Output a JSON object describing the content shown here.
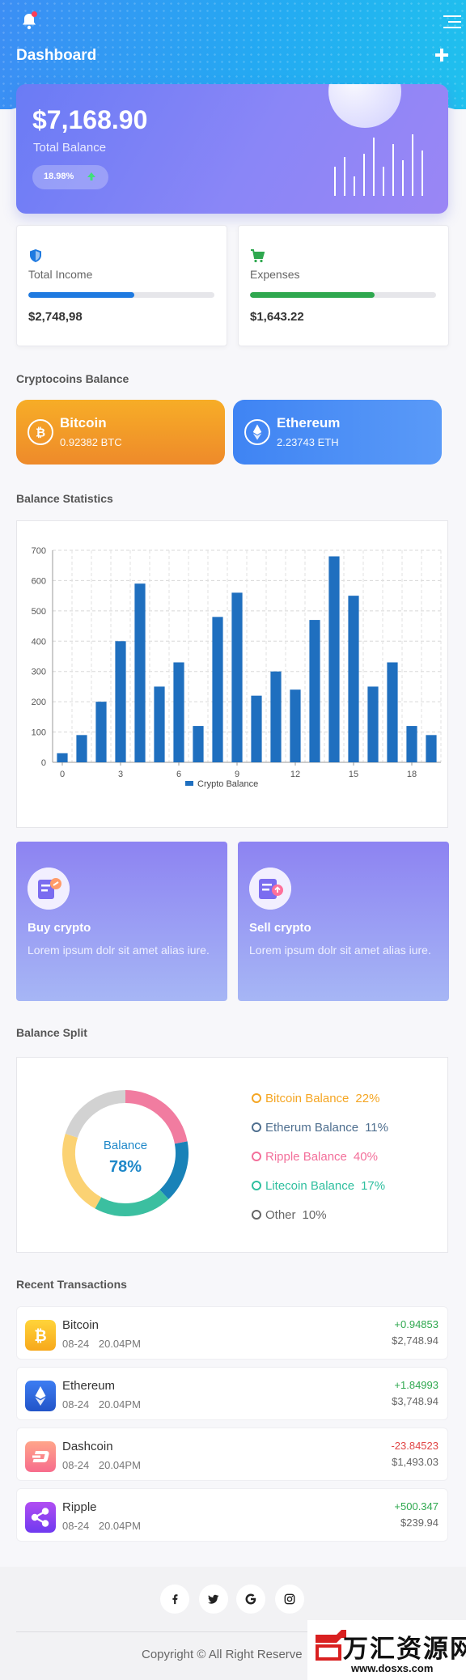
{
  "header": {
    "title": "Dashboard",
    "bell_icon": "bell-icon",
    "menu_icon": "hamburger-menu-icon",
    "add_icon": "plus-icon"
  },
  "balance": {
    "amount": "$7,168.90",
    "label": "Total Balance",
    "change": "18.98%",
    "change_icon": "arrow-up-icon",
    "sparkline_heights": [
      0.45,
      0.6,
      0.3,
      0.65,
      0.9,
      0.45,
      0.8,
      0.55,
      0.95,
      0.7
    ]
  },
  "stats": [
    {
      "label": "Total Income",
      "value": "$2,748,98",
      "icon": "shield-icon",
      "progress": 0.57,
      "color": "#1f7ae0"
    },
    {
      "label": "Expenses",
      "value": "$1,643.22",
      "icon": "cart-icon",
      "progress": 0.67,
      "color": "#2fa84f"
    }
  ],
  "coins_section": {
    "title": "Cryptocoins Balance"
  },
  "coins": [
    {
      "name": "Bitcoin",
      "amount": "0.92382 BTC",
      "icon": "bitcoin-icon"
    },
    {
      "name": "Ethereum",
      "amount": "2.23743 ETH",
      "icon": "ethereum-icon"
    }
  ],
  "stats_section": {
    "title": "Balance Statistics"
  },
  "chart_data": {
    "type": "bar",
    "x": [
      0,
      1,
      2,
      3,
      4,
      5,
      6,
      7,
      8,
      9,
      10,
      11,
      12,
      13,
      14,
      15,
      16,
      17,
      18,
      19
    ],
    "series": [
      {
        "name": "Crypto Balance",
        "values": [
          30,
          90,
          200,
          400,
          590,
          250,
          330,
          120,
          480,
          560,
          220,
          300,
          240,
          470,
          680,
          550,
          250,
          330,
          120,
          90
        ]
      }
    ],
    "ylim": [
      0,
      700
    ],
    "yticks": [
      0,
      100,
      200,
      300,
      400,
      500,
      600,
      700
    ],
    "xticks": [
      0,
      3,
      6,
      9,
      12,
      15,
      18
    ],
    "grid": true,
    "legend": "bottom",
    "color": "#1f6fbf"
  },
  "actions": [
    {
      "title": "Buy crypto",
      "desc": "Lorem ipsum dolr sit amet alias iure.",
      "icon": "buy-crypto-icon"
    },
    {
      "title": "Sell crypto",
      "desc": "Lorem ipsum dolr sit amet alias iure.",
      "icon": "sell-crypto-icon"
    }
  ],
  "split_section": {
    "title": "Balance Split"
  },
  "split": {
    "center_label": "Balance",
    "center_value": "78%",
    "items": [
      {
        "label": "Bitcoin Balance",
        "pct": "22%",
        "color": "#f5a623"
      },
      {
        "label": "Etherum Balance",
        "pct": "11%",
        "color": "#4f6f8f"
      },
      {
        "label": "Ripple Balance",
        "pct": "40%",
        "color": "#f36f9a"
      },
      {
        "label": "Litecoin Balance",
        "pct": "17%",
        "color": "#2fbf9f"
      },
      {
        "label": "Other",
        "pct": "10%",
        "color": "#666666"
      }
    ],
    "donut_segments": [
      {
        "share": 0.22,
        "color": "#f17ca0"
      },
      {
        "share": 0.16,
        "color": "#1982b8"
      },
      {
        "share": 0.2,
        "color": "#3bbfa0"
      },
      {
        "share": 0.22,
        "color": "#fbd273"
      },
      {
        "share": 0.2,
        "color": "#d2d2d2"
      }
    ]
  },
  "tx_section": {
    "title": "Recent Transactions"
  },
  "transactions": [
    {
      "name": "Bitcoin",
      "date": "08-24 20.04PM",
      "change": "+0.94853",
      "fiat": "$2,748.94",
      "positive": true,
      "icon": "bitcoin-icon"
    },
    {
      "name": "Ethereum",
      "date": "08-24 20.04PM",
      "change": "+1.84993",
      "fiat": "$3,748.94",
      "positive": true,
      "icon": "ethereum-icon"
    },
    {
      "name": "Dashcoin",
      "date": "08-24 20.04PM",
      "change": "-23.84523",
      "fiat": "$1,493.03",
      "positive": false,
      "icon": "dash-icon"
    },
    {
      "name": "Ripple",
      "date": "08-24 20.04PM",
      "change": "+500.347",
      "fiat": "$239.94",
      "positive": true,
      "icon": "ripple-icon"
    }
  ],
  "footer": {
    "social": [
      "facebook-icon",
      "twitter-icon",
      "google-icon",
      "instagram-icon"
    ],
    "copyright": "Copyright © All Right Reserve"
  },
  "watermark": {
    "big": "万汇资源网",
    "small": "www.dosxs.com"
  }
}
